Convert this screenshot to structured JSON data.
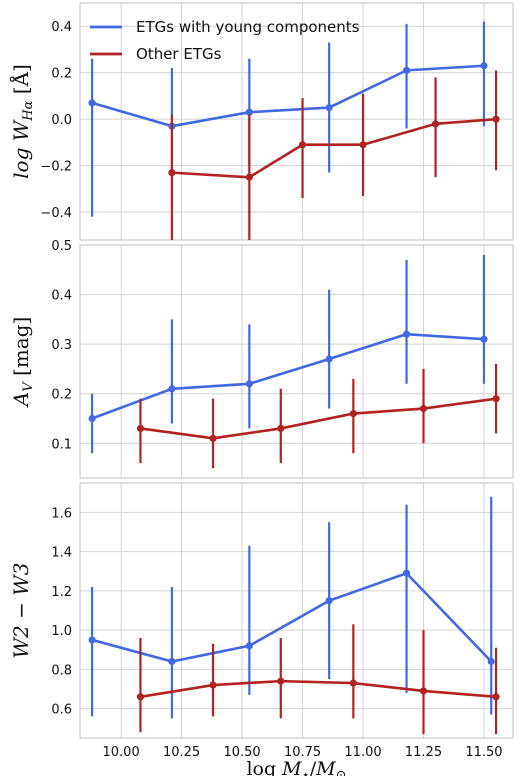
{
  "chart_data": [
    {
      "type": "line",
      "ylabel": "log W_Hα [Å]",
      "ylim": [
        -0.52,
        0.5
      ],
      "yticks": [
        "−0.4",
        "−0.2",
        "0.0",
        "0.2",
        "0.4"
      ],
      "ytick_values": [
        -0.4,
        -0.2,
        0.0,
        0.2,
        0.4
      ],
      "legend": {
        "placement": "top-left",
        "entries": [
          "ETGs with young components",
          "Other ETGs"
        ]
      },
      "series": [
        {
          "name": "ETGs with young components",
          "color": "#4169e1",
          "x": [
            9.88,
            10.21,
            10.53,
            10.86,
            11.18,
            11.5
          ],
          "y": [
            0.07,
            -0.03,
            0.03,
            0.05,
            0.21,
            0.23
          ],
          "err_low": [
            -0.42,
            -0.22,
            -0.2,
            -0.23,
            -0.04,
            -0.03
          ],
          "err_high": [
            0.26,
            0.22,
            0.26,
            0.33,
            0.41,
            0.42
          ]
        },
        {
          "name": "Other ETGs",
          "color": "#b22222",
          "x": [
            10.21,
            10.53,
            10.75,
            11.0,
            11.3,
            11.55
          ],
          "y": [
            -0.23,
            -0.25,
            -0.11,
            -0.11,
            -0.02,
            0.0
          ],
          "err_low": [
            -0.52,
            -0.52,
            -0.34,
            -0.33,
            -0.25,
            -0.22
          ],
          "err_high": [
            0.02,
            0.02,
            0.09,
            0.11,
            0.18,
            0.21
          ]
        }
      ]
    },
    {
      "type": "line",
      "ylabel": "A_V [mag]",
      "ylim": [
        0.03,
        0.5
      ],
      "yticks": [
        "0.1",
        "0.2",
        "0.3",
        "0.4",
        "0.5"
      ],
      "ytick_values": [
        0.1,
        0.2,
        0.3,
        0.4,
        0.5
      ],
      "series": [
        {
          "name": "ETGs with young components",
          "color": "#4169e1",
          "x": [
            9.88,
            10.21,
            10.53,
            10.86,
            11.18,
            11.5
          ],
          "y": [
            0.15,
            0.21,
            0.22,
            0.27,
            0.32,
            0.31
          ],
          "err_low": [
            0.08,
            0.14,
            0.13,
            0.17,
            0.22,
            0.22
          ],
          "err_high": [
            0.2,
            0.35,
            0.34,
            0.41,
            0.47,
            0.48
          ]
        },
        {
          "name": "Other ETGs",
          "color": "#b22222",
          "x": [
            10.08,
            10.38,
            10.66,
            10.96,
            11.25,
            11.55
          ],
          "y": [
            0.13,
            0.11,
            0.13,
            0.16,
            0.17,
            0.19
          ],
          "err_low": [
            0.06,
            0.05,
            0.06,
            0.08,
            0.1,
            0.12
          ],
          "err_high": [
            0.19,
            0.19,
            0.21,
            0.23,
            0.25,
            0.26
          ]
        }
      ]
    },
    {
      "type": "line",
      "ylabel": "W2 − W3",
      "xlabel": "log M⋆/M⊙",
      "ylim": [
        0.45,
        1.75
      ],
      "yticks": [
        "0.6",
        "0.8",
        "1.0",
        "1.2",
        "1.4",
        "1.6"
      ],
      "ytick_values": [
        0.6,
        0.8,
        1.0,
        1.2,
        1.4,
        1.6
      ],
      "xticks": [
        "10.00",
        "10.25",
        "10.50",
        "10.75",
        "11.00",
        "11.25",
        "11.50"
      ],
      "xtick_values": [
        10.0,
        10.25,
        10.5,
        10.75,
        11.0,
        11.25,
        11.5
      ],
      "xlim": [
        9.83,
        11.62
      ],
      "series": [
        {
          "name": "ETGs with young components",
          "color": "#4169e1",
          "x": [
            9.88,
            10.21,
            10.53,
            10.86,
            11.18,
            11.53
          ],
          "y": [
            0.95,
            0.84,
            0.92,
            1.15,
            1.29,
            0.84
          ],
          "err_low": [
            0.56,
            0.55,
            0.67,
            0.75,
            0.68,
            0.57
          ],
          "err_high": [
            1.22,
            1.22,
            1.43,
            1.55,
            1.64,
            1.68
          ]
        },
        {
          "name": "Other ETGs",
          "color": "#b22222",
          "x": [
            10.08,
            10.38,
            10.66,
            10.96,
            11.25,
            11.55
          ],
          "y": [
            0.66,
            0.72,
            0.74,
            0.73,
            0.69,
            0.66
          ],
          "err_low": [
            0.48,
            0.56,
            0.55,
            0.55,
            0.47,
            0.47
          ],
          "err_high": [
            0.96,
            0.93,
            0.96,
            1.03,
            1.0,
            0.91
          ]
        }
      ]
    }
  ]
}
